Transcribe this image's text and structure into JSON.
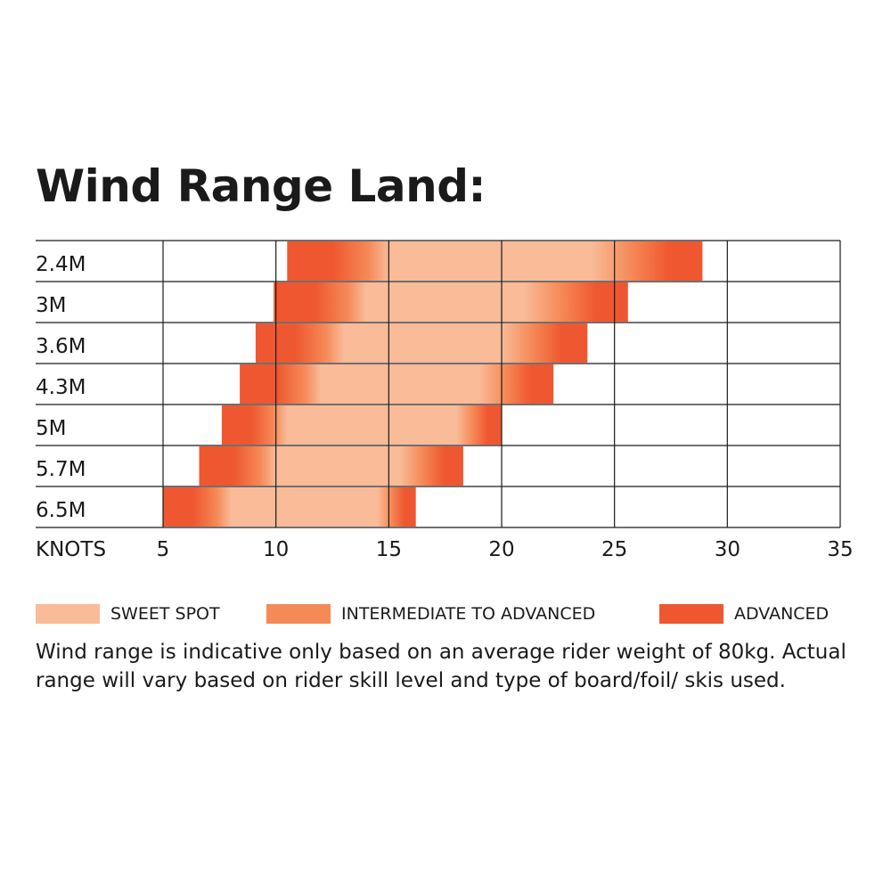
{
  "chart_data": {
    "type": "bar",
    "title": "Wind Range Land:",
    "xlabel": "KNOTS",
    "xlim": [
      5,
      35
    ],
    "xticks": [
      5,
      10,
      15,
      20,
      25,
      30,
      35
    ],
    "grid": true,
    "categories": [
      "2.4M",
      "3M",
      "3.6M",
      "4.3M",
      "5M",
      "5.7M",
      "6.5M"
    ],
    "ranges": [
      {
        "size": "2.4M",
        "min": 10.5,
        "sweet_start": 15,
        "sweet_end": 24,
        "max": 28.9
      },
      {
        "size": "3M",
        "min": 9.9,
        "sweet_start": 14,
        "sweet_end": 21,
        "max": 25.6
      },
      {
        "size": "3.6M",
        "min": 9.1,
        "sweet_start": 13,
        "sweet_end": 20,
        "max": 23.8
      },
      {
        "size": "4.3M",
        "min": 8.4,
        "sweet_start": 12,
        "sweet_end": 19,
        "max": 22.3
      },
      {
        "size": "5M",
        "min": 7.6,
        "sweet_start": 10.5,
        "sweet_end": 18,
        "max": 20
      },
      {
        "size": "5.7M",
        "min": 6.6,
        "sweet_start": 10,
        "sweet_end": 15.5,
        "max": 18.3
      },
      {
        "size": "6.5M",
        "min": 5,
        "sweet_start": 8,
        "sweet_end": 14.5,
        "max": 16.2
      }
    ],
    "legend": [
      {
        "label": "SWEET SPOT",
        "color": "#f9bb98"
      },
      {
        "label": "INTERMEDIATE TO ADVANCED",
        "color": "#f58a58"
      },
      {
        "label": "ADVANCED",
        "color": "#ef5730"
      }
    ]
  },
  "note": "Wind range is indicative only based on an average rider weight of 80kg. Actual range will vary based on rider skill level and type of board/foil/ skis used."
}
